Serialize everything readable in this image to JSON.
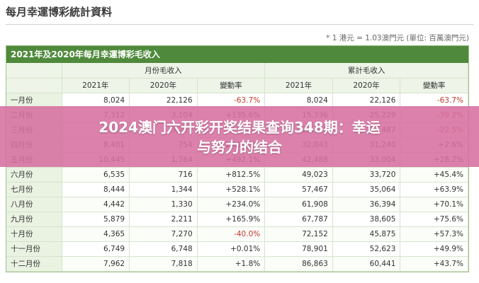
{
  "title": "每月幸運博彩統計資料",
  "note": "* 1 港元 = 1.03澳門元 (單位: 百萬澳門元)",
  "table": {
    "header": "2021年及2020年每月幸運博彩毛收入",
    "group_headers": [
      "月份毛收入",
      "累計毛收入"
    ],
    "col_headers": [
      "2021年",
      "2020年",
      "變動率",
      "2021年",
      "2020年",
      "變動率"
    ],
    "rows": [
      {
        "month": "一月份",
        "v": [
          "8,024",
          "22,126",
          "-63.7%",
          "8,024",
          "22,126",
          "-63.7%"
        ]
      },
      {
        "month": "二月份",
        "v": [
          "7,312",
          "3,104",
          "+135.6%",
          "15,336",
          "25,229",
          "-39.2%"
        ]
      },
      {
        "month": "三月份",
        "v": [
          "8,306",
          "5,257",
          "+58.0%",
          "23,642",
          "30,487",
          "-22.5%"
        ]
      },
      {
        "month": "四月份",
        "v": [
          "8,401",
          "754",
          "+1,014.0%",
          "32,043",
          "31,240",
          "+2.6%"
        ]
      },
      {
        "month": "五月份",
        "v": [
          "10,445",
          "1,764",
          "+492.1%",
          "42,488",
          "33,004",
          "+28.7%"
        ]
      },
      {
        "month": "六月份",
        "v": [
          "6,535",
          "716",
          "+812.5%",
          "49,023",
          "33,720",
          "+45.4%"
        ]
      },
      {
        "month": "七月份",
        "v": [
          "8,444",
          "1,344",
          "+528.1%",
          "57,467",
          "35,064",
          "+63.9%"
        ]
      },
      {
        "month": "八月份",
        "v": [
          "4,442",
          "1,330",
          "+234.0%",
          "61,908",
          "36,394",
          "+70.1%"
        ]
      },
      {
        "month": "九月份",
        "v": [
          "5,879",
          "2,211",
          "+165.9%",
          "67,787",
          "38,605",
          "+75.6%"
        ]
      },
      {
        "month": "十月份",
        "v": [
          "4,365",
          "7,270",
          "-40.0%",
          "72,152",
          "45,875",
          "+57.3%"
        ]
      },
      {
        "month": "十一月份",
        "v": [
          "6,749",
          "6,748",
          "+0.01%",
          "78,901",
          "52,623",
          "+49.9%"
        ]
      },
      {
        "month": "十二月份",
        "v": [
          "7,962",
          "7,818",
          "+1.8%",
          "86,863",
          "60,441",
          "+43.7%"
        ]
      }
    ]
  },
  "overlay": {
    "line1": "2024澳门六开彩开奖结果查询348期：幸运",
    "line2": "与努力的结合"
  }
}
